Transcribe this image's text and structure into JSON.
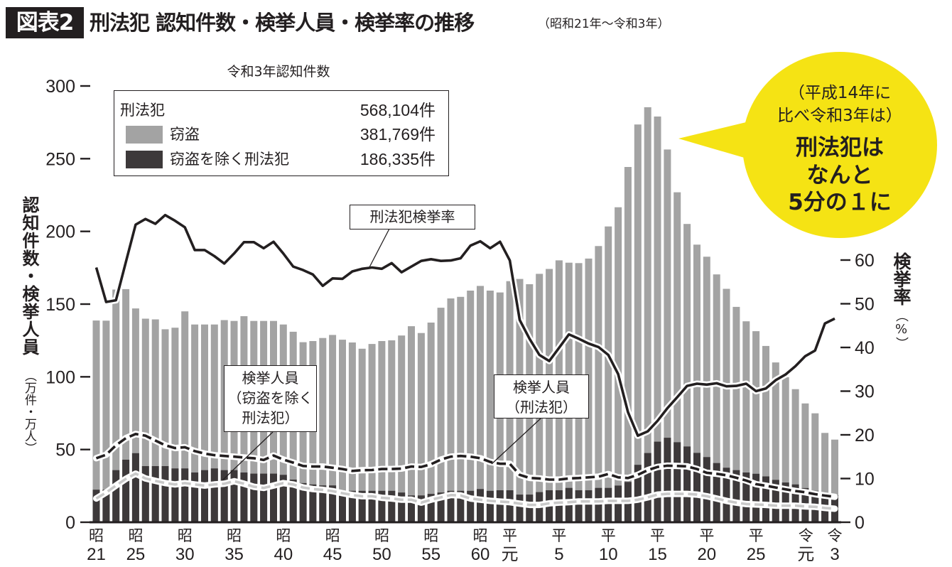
{
  "header": {
    "badge": "図表2",
    "title": "刑法犯 認知件数・検挙人員・検挙率の推移",
    "subtitle": "（昭和21年〜令和3年）"
  },
  "legend": {
    "heading": "令和3年認知件数",
    "rows": [
      {
        "label": "刑法犯",
        "value": "568,104件"
      },
      {
        "label": "窃盗",
        "value": "381,769件"
      },
      {
        "label": "窃盗を除く刑法犯",
        "value": "186,335件"
      }
    ]
  },
  "axes_titles": {
    "left": "認知件数・検挙人員",
    "left_unit": "（万件・万人）",
    "right": "検挙率",
    "right_unit": "（%）"
  },
  "callouts": {
    "rate": "刑法犯検挙率",
    "arrest_non_theft": [
      "検挙人員",
      "（窃盗を除く",
      "刑法犯）"
    ],
    "arrest_total": [
      "検挙人員",
      "（刑法犯）"
    ]
  },
  "bubble": {
    "lines": [
      "（平成14年に",
      "比べ令和3年は）",
      "刑法犯は",
      "なんと",
      "5分の１に"
    ]
  },
  "colors": {
    "theft": "#a3a3a3",
    "non_theft": "#3d393a",
    "arrest_total_line": "#231f20",
    "arrest_non_theft_line": "#c9c9c9",
    "rate_line": "#231f20",
    "bubble": "#f5e314",
    "ink": "#231f20"
  },
  "chart_data": {
    "type": "bar",
    "title": "刑法犯 認知件数・検挙人員・検挙率の推移（昭和21年〜令和3年）",
    "xlabel": "",
    "ylabel": "認知件数・検挙人員（万件・万人）",
    "ylabel_right": "検挙率（%）",
    "ylim": [
      0,
      300
    ],
    "ylim_right": [
      0,
      60
    ],
    "grid": false,
    "legend_position": "top-left",
    "y_left_ticks": [
      0,
      50,
      100,
      150,
      200,
      250,
      300
    ],
    "y_right_ticks": [
      0,
      10,
      20,
      30,
      40,
      50,
      60
    ],
    "x_ticks": [
      {
        "index": 0,
        "era": "昭",
        "num": "21"
      },
      {
        "index": 4,
        "era": "昭",
        "num": "25"
      },
      {
        "index": 9,
        "era": "昭",
        "num": "30"
      },
      {
        "index": 14,
        "era": "昭",
        "num": "35"
      },
      {
        "index": 19,
        "era": "昭",
        "num": "40"
      },
      {
        "index": 24,
        "era": "昭",
        "num": "45"
      },
      {
        "index": 29,
        "era": "昭",
        "num": "50"
      },
      {
        "index": 34,
        "era": "昭",
        "num": "55"
      },
      {
        "index": 39,
        "era": "昭",
        "num": "60"
      },
      {
        "index": 43,
        "era": "平",
        "num": "元"
      },
      {
        "index": 47,
        "era": "平",
        "num": "5"
      },
      {
        "index": 52,
        "era": "平",
        "num": "10"
      },
      {
        "index": 57,
        "era": "平",
        "num": "15"
      },
      {
        "index": 62,
        "era": "平",
        "num": "20"
      },
      {
        "index": 67,
        "era": "平",
        "num": "25"
      },
      {
        "index": 73,
        "era": "令",
        "num": "元"
      },
      {
        "index": 75,
        "era": "令",
        "num": "3"
      }
    ],
    "categories": [
      "昭21",
      "昭22",
      "昭23",
      "昭24",
      "昭25",
      "昭26",
      "昭27",
      "昭28",
      "昭29",
      "昭30",
      "昭31",
      "昭32",
      "昭33",
      "昭34",
      "昭35",
      "昭36",
      "昭37",
      "昭38",
      "昭39",
      "昭40",
      "昭41",
      "昭42",
      "昭43",
      "昭44",
      "昭45",
      "昭46",
      "昭47",
      "昭48",
      "昭49",
      "昭50",
      "昭51",
      "昭52",
      "昭53",
      "昭54",
      "昭55",
      "昭56",
      "昭57",
      "昭58",
      "昭59",
      "昭60",
      "昭61",
      "昭62",
      "昭63",
      "平元",
      "平2",
      "平3",
      "平4",
      "平5",
      "平6",
      "平7",
      "平8",
      "平9",
      "平10",
      "平11",
      "平12",
      "平13",
      "平14",
      "平15",
      "平16",
      "平17",
      "平18",
      "平19",
      "平20",
      "平21",
      "平22",
      "平23",
      "平24",
      "平25",
      "平26",
      "平27",
      "平28",
      "平29",
      "平30",
      "令元",
      "令2",
      "令3"
    ],
    "series": [
      {
        "name": "刑法犯 認知件数（窃盗＋窃盗を除く刑法犯）",
        "unit": "万件",
        "axis": "left",
        "kind": "bar",
        "values": [
          138.7,
          138.6,
          160.0,
          160.3,
          147.0,
          140.0,
          139.5,
          132.7,
          133.8,
          145.0,
          136.0,
          136.0,
          136.0,
          139.0,
          138.4,
          141.7,
          138.4,
          138.4,
          138.4,
          136.0,
          131.0,
          123.8,
          124.6,
          126.7,
          128.8,
          125.5,
          123.6,
          119.3,
          122.6,
          124.6,
          125.1,
          128.4,
          134.8,
          130.1,
          137.3,
          147.5,
          153.9,
          155.0,
          159.3,
          162.5,
          159.3,
          158.0,
          165.8,
          167.3,
          163.7,
          170.8,
          174.2,
          180.1,
          178.5,
          178.2,
          181.3,
          189.9,
          203.4,
          216.6,
          244.3,
          273.5,
          285.4,
          279.0,
          256.3,
          226.9,
          205.1,
          190.9,
          182.6,
          170.4,
          160.5,
          148.1,
          138.2,
          131.4,
          121.2,
          109.9,
          99.7,
          91.5,
          81.7,
          74.9,
          61.4,
          56.8
        ]
      },
      {
        "name": "窃盗を除く刑法犯 認知件数",
        "unit": "万件",
        "axis": "left",
        "kind": "bar-overlay",
        "values": [
          22.4,
          22.4,
          35.8,
          43.0,
          47.5,
          38.6,
          38.6,
          38.6,
          37.0,
          37.0,
          34.2,
          35.8,
          37.0,
          35.8,
          35.8,
          34.2,
          33.4,
          33.4,
          33.4,
          32.6,
          29.3,
          26.9,
          26.0,
          25.3,
          25.3,
          21.6,
          21.6,
          21.6,
          21.6,
          21.6,
          21.6,
          20.4,
          18.4,
          18.4,
          19.5,
          20.4,
          21.6,
          21.6,
          21.6,
          22.8,
          21.6,
          22.0,
          22.0,
          19.0,
          19.0,
          20.7,
          22.0,
          22.0,
          23.6,
          22.0,
          22.0,
          23.6,
          23.6,
          25.2,
          27.7,
          39.5,
          47.6,
          55.4,
          58.1,
          55.0,
          52.1,
          47.7,
          44.8,
          40.7,
          37.5,
          35.8,
          34.2,
          33.3,
          31.5,
          29.1,
          27.3,
          26.0,
          23.5,
          21.6,
          19.7,
          18.6
        ]
      },
      {
        "name": "検挙人員（刑法犯）",
        "unit": "万人",
        "axis": "left",
        "kind": "dashed-line",
        "values": [
          44.0,
          46.4,
          52.9,
          57.8,
          60.7,
          59.5,
          56.2,
          52.9,
          51.0,
          51.6,
          48.9,
          47.2,
          46.1,
          45.6,
          45.1,
          44.5,
          44.0,
          42.8,
          45.9,
          43.1,
          41.0,
          38.7,
          38.3,
          38.3,
          37.5,
          36.6,
          35.3,
          35.8,
          35.9,
          36.6,
          36.6,
          36.9,
          38.3,
          38.0,
          39.9,
          43.1,
          45.1,
          45.6,
          45.1,
          44.0,
          41.5,
          40.2,
          40.2,
          32.6,
          30.5,
          30.1,
          29.3,
          29.3,
          30.1,
          30.4,
          30.9,
          31.3,
          33.2,
          30.9,
          30.4,
          32.6,
          35.8,
          38.0,
          38.9,
          38.7,
          38.4,
          36.6,
          34.0,
          33.3,
          32.3,
          30.6,
          28.7,
          26.2,
          25.1,
          23.9,
          22.6,
          21.5,
          20.6,
          19.3,
          18.3,
          17.5
        ]
      },
      {
        "name": "検挙人員（窃盗を除く刑法犯）",
        "unit": "万人",
        "axis": "left",
        "kind": "dashed-line",
        "values": [
          16.3,
          20.4,
          25.2,
          29.8,
          33.4,
          30.1,
          28.5,
          26.9,
          26.0,
          26.9,
          26.0,
          25.2,
          26.0,
          26.5,
          28.2,
          26.5,
          24.4,
          23.6,
          25.2,
          26.9,
          26.0,
          23.9,
          22.8,
          22.3,
          21.4,
          20.0,
          18.7,
          17.9,
          17.9,
          16.8,
          16.3,
          15.5,
          15.5,
          13.5,
          15.5,
          17.1,
          18.7,
          18.4,
          16.3,
          15.5,
          14.7,
          14.2,
          13.8,
          12.8,
          11.9,
          11.9,
          13.0,
          13.5,
          13.8,
          14.3,
          14.3,
          14.3,
          14.7,
          14.7,
          14.7,
          15.5,
          17.1,
          19.0,
          19.5,
          19.5,
          19.5,
          19.0,
          17.9,
          16.3,
          14.7,
          13.5,
          12.5,
          12.2,
          11.9,
          11.4,
          11.4,
          11.4,
          10.9,
          10.6,
          9.8,
          9.3
        ]
      },
      {
        "name": "刑法犯検挙率",
        "unit": "%",
        "axis": "right",
        "kind": "line",
        "values": [
          58.3,
          50.4,
          50.8,
          59.5,
          68.1,
          69.4,
          68.3,
          70.3,
          69.0,
          67.5,
          62.3,
          62.3,
          60.9,
          59.2,
          61.5,
          64.1,
          64.1,
          62.7,
          64.2,
          61.5,
          58.5,
          57.7,
          56.7,
          54.1,
          55.8,
          55.7,
          57.4,
          58.0,
          58.3,
          58.0,
          59.3,
          57.2,
          58.5,
          59.8,
          60.2,
          59.8,
          59.9,
          60.4,
          63.3,
          64.3,
          62.7,
          64.2,
          59.9,
          46.3,
          42.0,
          38.3,
          36.9,
          39.9,
          43.0,
          42.0,
          40.9,
          40.1,
          38.3,
          33.9,
          25.2,
          19.8,
          20.8,
          23.2,
          26.1,
          28.6,
          31.2,
          31.7,
          31.5,
          31.8,
          31.1,
          31.2,
          31.7,
          30.0,
          30.6,
          32.5,
          33.8,
          35.7,
          38.0,
          39.3,
          45.5,
          46.6
        ]
      }
    ],
    "annotations": [
      "刑法犯検挙率",
      "検挙人員（窃盗を除く刑法犯）",
      "検挙人員（刑法犯）",
      "（平成14年に比べ令和3年は）刑法犯はなんと5分の１に"
    ]
  }
}
